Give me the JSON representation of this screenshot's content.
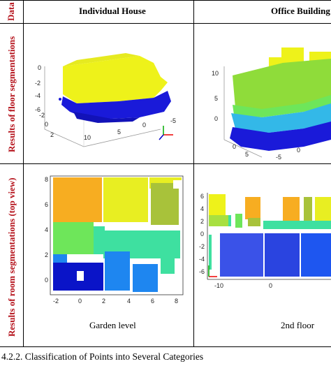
{
  "table": {
    "col0_header": "Data",
    "col1_header": "Individual House",
    "col2_header": "Office Building",
    "row1_label": "Results of floor segmentations",
    "row2_label": "Results of room segmentations (top view)",
    "caption_house": "Garden level",
    "caption_office": "2nd floor"
  },
  "section_heading": "4.2.2. Classification of Points into Several Categories",
  "plots": {
    "house_floor": {
      "z_ticks": [
        "0",
        "-2",
        "-4",
        "-6"
      ],
      "x_ticks": [
        "-2",
        "0",
        "2"
      ],
      "y_ticks": [
        "10",
        "5",
        "0",
        "-5"
      ]
    },
    "office_floor": {
      "z_ticks": [
        "10",
        "5",
        "0"
      ],
      "x_ticks": [
        "0",
        "5"
      ],
      "y_ticks": [
        "-5",
        "0"
      ]
    },
    "house_room": {
      "x_ticks": [
        "-2",
        "0",
        "2",
        "4",
        "6",
        "8"
      ],
      "y_ticks": [
        "8",
        "6",
        "4",
        "2",
        "0"
      ]
    },
    "office_room": {
      "x_ticks": [
        "-10",
        "0"
      ],
      "y_ticks": [
        "6",
        "4",
        "2",
        "0",
        "-2",
        "-4",
        "-6"
      ]
    }
  },
  "colors": {
    "yellow": "#eef21a",
    "blue": "#1a1ad9",
    "green": "#8fdc3a",
    "lime": "#6ee65a",
    "cyan": "#33b8e8",
    "orange": "#f7ad21",
    "olive": "#a8c23a",
    "teal": "#3ee0a0",
    "lightblue": "#1e86f0",
    "navy": "#0a14c8",
    "header_red": "#b5121b"
  }
}
